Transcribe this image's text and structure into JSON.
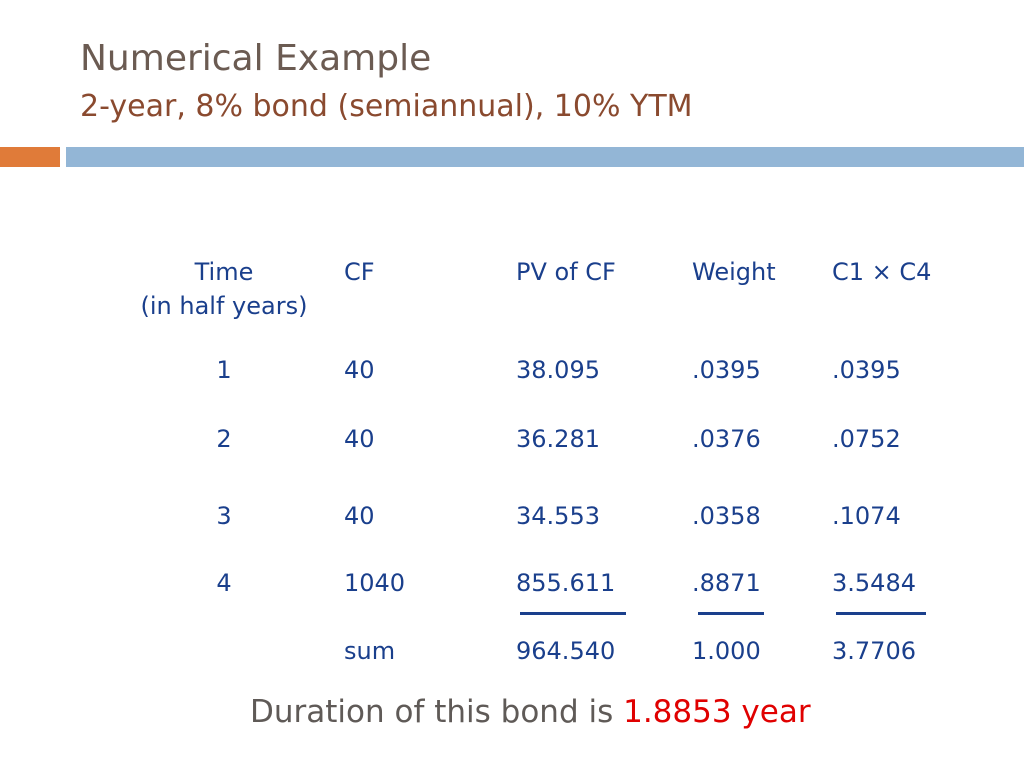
{
  "slide": {
    "title": "Numerical Example",
    "subtitle": "2-year, 8% bond (semiannual), 10% YTM"
  },
  "table": {
    "headers": [
      "Time",
      "CF",
      "PV of CF",
      "Weight",
      "C1 × C4"
    ],
    "header_sub": "(in half years)",
    "rows": [
      [
        "1",
        "40",
        "38.095",
        ".0395",
        ".0395"
      ],
      [
        "2",
        "40",
        "36.281",
        ".0376",
        ".0752"
      ],
      [
        "3",
        "40",
        "34.553",
        ".0358",
        ".1074"
      ],
      [
        "4",
        "1040",
        "855.611",
        ".8871",
        "3.5484"
      ]
    ],
    "sum_row": [
      "sum",
      "964.540",
      "1.000",
      "3.7706"
    ]
  },
  "conclusion": {
    "text": "Duration of this bond is ",
    "value": "1.8853 year"
  },
  "colors": {
    "title": "#6b5b52",
    "subtitle": "#8a4a2f",
    "table_text": "#1a3f8c",
    "highlight": "#e00000",
    "accent_orange": "#e07b39",
    "accent_blue": "#93b6d6"
  }
}
